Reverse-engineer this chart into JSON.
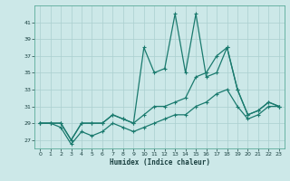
{
  "xlabel": "Humidex (Indice chaleur)",
  "bg_color": "#cce8e8",
  "grid_color": "#aacfcf",
  "line_color": "#1a7a6e",
  "xlim": [
    -0.5,
    23.5
  ],
  "ylim": [
    26.0,
    43.0
  ],
  "yticks": [
    27,
    29,
    31,
    33,
    35,
    37,
    39,
    41
  ],
  "xticks": [
    0,
    1,
    2,
    3,
    4,
    5,
    6,
    7,
    8,
    9,
    10,
    11,
    12,
    13,
    14,
    15,
    16,
    17,
    18,
    19,
    20,
    21,
    22,
    23
  ],
  "series_top_x": [
    0,
    1,
    2,
    3,
    4,
    5,
    6,
    7,
    8,
    9,
    10,
    11,
    12,
    13,
    14,
    15,
    16,
    17,
    18,
    19,
    20,
    21,
    22,
    23
  ],
  "series_top_y": [
    29,
    29,
    29,
    27,
    29,
    29,
    29,
    30,
    29.5,
    29,
    38,
    35,
    35.5,
    42,
    35,
    42,
    34.5,
    35,
    38,
    33,
    30,
    30.5,
    31.5,
    31
  ],
  "series_mid_x": [
    0,
    1,
    2,
    3,
    4,
    5,
    6,
    7,
    8,
    9,
    10,
    11,
    12,
    13,
    14,
    15,
    16,
    17,
    18,
    19,
    20,
    21,
    22,
    23
  ],
  "series_mid_y": [
    29,
    29,
    29,
    27,
    29,
    29,
    29,
    30,
    29.5,
    29,
    30,
    31,
    31,
    31.5,
    32,
    34.5,
    35,
    37,
    38,
    33,
    30,
    30.5,
    31.5,
    31
  ],
  "series_bot_x": [
    0,
    1,
    2,
    3,
    4,
    5,
    6,
    7,
    8,
    9,
    10,
    11,
    12,
    13,
    14,
    15,
    16,
    17,
    18,
    19,
    20,
    21,
    22,
    23
  ],
  "series_bot_y": [
    29,
    29,
    28.5,
    26.5,
    28,
    27.5,
    28,
    29,
    28.5,
    28,
    28.5,
    29,
    29.5,
    30,
    30,
    31,
    31.5,
    32.5,
    33,
    31,
    29.5,
    30,
    31,
    31
  ]
}
